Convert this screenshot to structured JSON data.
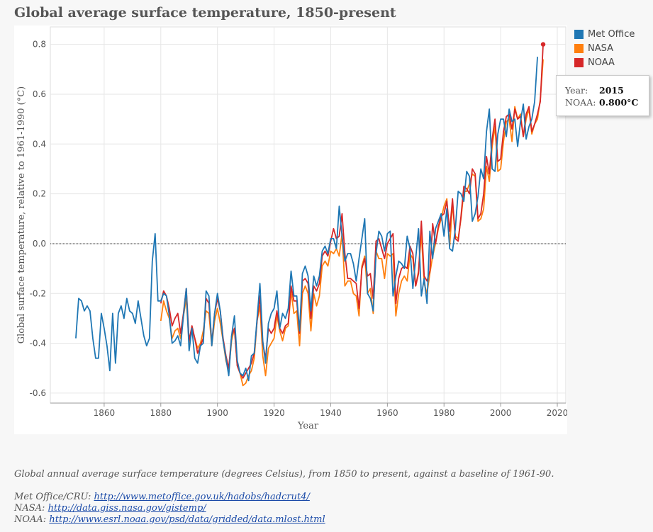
{
  "title": "Global average surface temperature, 1850-present",
  "caption": "Global annual average surface temperature (degrees Celsius), from 1850 to present, against a baseline of 1961-90.",
  "sources": [
    {
      "label": "Met Office/CRU:",
      "url": "http://www.metoffice.gov.uk/hadobs/hadcrut4/"
    },
    {
      "label": "NASA:",
      "url": "http://data.giss.nasa.gov/gistemp/"
    },
    {
      "label": "NOAA:",
      "url": "http://www.esrl.noaa.gov/psd/data/gridded/data.mlost.html"
    }
  ],
  "tooltip": {
    "year_label": "Year:",
    "year_value": "2015",
    "series_label": "NOAA:",
    "series_value": "0.800°C"
  },
  "colors": {
    "met_office": "#1f77b4",
    "nasa": "#ff7f0e",
    "noaa": "#d62728",
    "zero_line": "#333333",
    "grid": "#e6e6e6"
  },
  "chart_data": {
    "type": "line",
    "title": "Global average surface temperature, 1850-present",
    "xlabel": "Year",
    "ylabel": "Global surface temperature, relative to 1961-1990 (°C)",
    "xlim": [
      1841,
      2023
    ],
    "ylim": [
      -0.64,
      0.87
    ],
    "x_ticks": [
      1860,
      1880,
      1900,
      1920,
      1940,
      1960,
      1980,
      2000,
      2020
    ],
    "y_ticks": [
      -0.6,
      -0.4,
      -0.2,
      0.0,
      0.2,
      0.4,
      0.6,
      0.8
    ],
    "y_tick_labels": [
      "-0.6",
      "-0.4",
      "-0.2",
      "0.0",
      "0.2",
      "0.4",
      "0.6",
      "0.8"
    ],
    "legend_position": "top-right, outside plot",
    "grid": true,
    "reference_line": 0.0,
    "highlight_point": {
      "series": "NOAA",
      "x": 2015,
      "y": 0.8
    },
    "series": [
      {
        "name": "Met Office",
        "start_year": 1850,
        "values": [
          -0.38,
          -0.22,
          -0.23,
          -0.27,
          -0.25,
          -0.27,
          -0.38,
          -0.46,
          -0.46,
          -0.28,
          -0.34,
          -0.41,
          -0.51,
          -0.28,
          -0.48,
          -0.28,
          -0.25,
          -0.3,
          -0.22,
          -0.27,
          -0.28,
          -0.32,
          -0.23,
          -0.3,
          -0.37,
          -0.41,
          -0.38,
          -0.07,
          0.04,
          -0.23,
          -0.23,
          -0.2,
          -0.21,
          -0.29,
          -0.4,
          -0.39,
          -0.37,
          -0.41,
          -0.29,
          -0.18,
          -0.43,
          -0.34,
          -0.46,
          -0.48,
          -0.41,
          -0.4,
          -0.19,
          -0.21,
          -0.41,
          -0.28,
          -0.2,
          -0.27,
          -0.39,
          -0.46,
          -0.53,
          -0.37,
          -0.29,
          -0.47,
          -0.52,
          -0.53,
          -0.5,
          -0.55,
          -0.45,
          -0.44,
          -0.3,
          -0.16,
          -0.39,
          -0.48,
          -0.32,
          -0.28,
          -0.26,
          -0.19,
          -0.34,
          -0.28,
          -0.3,
          -0.26,
          -0.11,
          -0.21,
          -0.21,
          -0.35,
          -0.12,
          -0.09,
          -0.13,
          -0.27,
          -0.13,
          -0.17,
          -0.13,
          -0.03,
          -0.01,
          -0.04,
          0.02,
          0.02,
          -0.02,
          0.15,
          0.03,
          -0.07,
          -0.04,
          -0.04,
          -0.08,
          -0.15,
          -0.06,
          0.02,
          0.1,
          -0.2,
          -0.22,
          -0.27,
          -0.04,
          0.05,
          0.03,
          -0.03,
          0.04,
          0.05,
          -0.21,
          -0.13,
          -0.07,
          -0.08,
          -0.1,
          0.03,
          -0.02,
          -0.18,
          -0.06,
          0.06,
          -0.21,
          -0.14,
          -0.24,
          0.05,
          -0.06,
          0.06,
          0.09,
          0.12,
          0.03,
          0.14,
          -0.02,
          -0.03,
          0.06,
          0.21,
          0.2,
          0.17,
          0.29,
          0.27,
          0.09,
          0.12,
          0.19,
          0.3,
          0.26,
          0.45,
          0.54,
          0.3,
          0.29,
          0.44,
          0.5,
          0.5,
          0.43,
          0.54,
          0.49,
          0.5,
          0.39,
          0.49,
          0.56,
          0.42,
          0.47,
          0.5,
          0.57,
          0.75
        ]
      },
      {
        "name": "NASA",
        "start_year": 1880,
        "values": [
          -0.31,
          -0.23,
          -0.27,
          -0.3,
          -0.38,
          -0.35,
          -0.34,
          -0.38,
          -0.29,
          -0.22,
          -0.4,
          -0.34,
          -0.38,
          -0.42,
          -0.4,
          -0.35,
          -0.27,
          -0.28,
          -0.41,
          -0.31,
          -0.26,
          -0.32,
          -0.39,
          -0.47,
          -0.51,
          -0.39,
          -0.34,
          -0.49,
          -0.52,
          -0.57,
          -0.56,
          -0.53,
          -0.51,
          -0.46,
          -0.31,
          -0.25,
          -0.45,
          -0.53,
          -0.42,
          -0.4,
          -0.38,
          -0.29,
          -0.35,
          -0.39,
          -0.34,
          -0.33,
          -0.19,
          -0.28,
          -0.27,
          -0.41,
          -0.2,
          -0.17,
          -0.2,
          -0.35,
          -0.2,
          -0.25,
          -0.21,
          -0.09,
          -0.07,
          -0.09,
          -0.03,
          -0.04,
          -0.02,
          -0.05,
          0.04,
          -0.17,
          -0.15,
          -0.15,
          -0.2,
          -0.21,
          -0.29,
          -0.09,
          -0.05,
          -0.2,
          -0.18,
          -0.28,
          -0.03,
          -0.06,
          -0.06,
          -0.14,
          -0.04,
          -0.05,
          -0.04,
          -0.29,
          -0.2,
          -0.15,
          -0.13,
          -0.15,
          -0.04,
          -0.06,
          -0.17,
          -0.11,
          0.04,
          -0.16,
          -0.2,
          -0.12,
          -0.05,
          0.0,
          0.06,
          0.1,
          0.15,
          0.18,
          -0.01,
          0.16,
          0.03,
          0.02,
          0.1,
          0.21,
          0.21,
          0.24,
          0.28,
          0.27,
          0.09,
          0.1,
          0.14,
          0.31,
          0.25,
          0.39,
          0.47,
          0.29,
          0.3,
          0.41,
          0.49,
          0.5,
          0.41,
          0.55,
          0.5,
          0.52,
          0.43,
          0.5,
          0.54,
          0.44,
          0.48,
          0.5,
          0.58,
          0.74
        ]
      },
      {
        "name": "NOAA",
        "start_year": 1880,
        "values": [
          -0.24,
          -0.19,
          -0.21,
          -0.26,
          -0.33,
          -0.3,
          -0.28,
          -0.36,
          -0.28,
          -0.18,
          -0.39,
          -0.33,
          -0.38,
          -0.44,
          -0.41,
          -0.38,
          -0.22,
          -0.24,
          -0.4,
          -0.28,
          -0.22,
          -0.27,
          -0.38,
          -0.45,
          -0.5,
          -0.37,
          -0.34,
          -0.49,
          -0.52,
          -0.54,
          -0.52,
          -0.5,
          -0.48,
          -0.44,
          -0.31,
          -0.21,
          -0.4,
          -0.46,
          -0.34,
          -0.36,
          -0.34,
          -0.27,
          -0.34,
          -0.36,
          -0.33,
          -0.32,
          -0.17,
          -0.23,
          -0.23,
          -0.36,
          -0.15,
          -0.14,
          -0.16,
          -0.3,
          -0.17,
          -0.19,
          -0.16,
          -0.05,
          -0.03,
          -0.05,
          0.01,
          0.06,
          0.02,
          0.03,
          0.12,
          -0.04,
          -0.14,
          -0.14,
          -0.15,
          -0.16,
          -0.26,
          -0.1,
          -0.06,
          -0.13,
          -0.12,
          -0.22,
          0.01,
          0.02,
          -0.02,
          -0.06,
          0.0,
          0.02,
          0.04,
          -0.24,
          -0.14,
          -0.1,
          -0.09,
          -0.1,
          -0.01,
          -0.04,
          -0.17,
          -0.12,
          0.09,
          -0.13,
          -0.15,
          -0.11,
          0.08,
          0.0,
          0.07,
          0.11,
          0.12,
          0.17,
          0.05,
          0.18,
          0.02,
          0.01,
          0.11,
          0.23,
          0.22,
          0.2,
          0.3,
          0.28,
          0.1,
          0.12,
          0.2,
          0.35,
          0.28,
          0.42,
          0.5,
          0.33,
          0.34,
          0.45,
          0.51,
          0.52,
          0.46,
          0.54,
          0.5,
          0.51,
          0.43,
          0.52,
          0.55,
          0.45,
          0.48,
          0.52,
          0.57,
          0.8
        ]
      }
    ]
  }
}
